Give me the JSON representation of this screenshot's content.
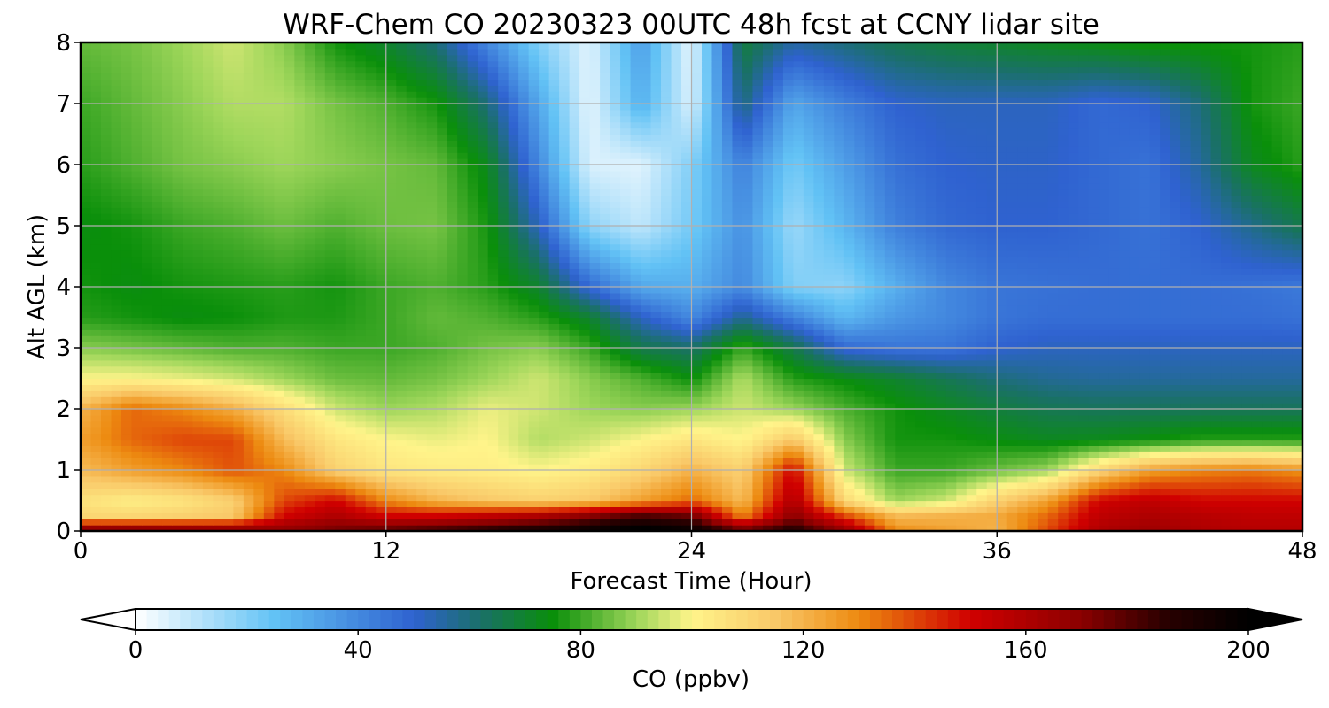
{
  "chart_data": {
    "type": "heatmap",
    "title": "WRF-Chem CO  20230323 00UTC 48h fcst at CCNY lidar site",
    "xlabel": "Forecast Time (Hour)",
    "ylabel": "Alt AGL (km)",
    "xlim": [
      0,
      48
    ],
    "ylim": [
      0,
      8
    ],
    "xticks": [
      0,
      12,
      24,
      36,
      48
    ],
    "yticks": [
      0,
      1,
      2,
      3,
      4,
      5,
      6,
      7,
      8
    ],
    "grid": true,
    "x_hours": [
      0,
      2,
      4,
      6,
      8,
      10,
      12,
      14,
      16,
      18,
      20,
      22,
      24,
      26,
      28,
      30,
      32,
      34,
      36,
      38,
      40,
      42,
      44,
      46,
      48
    ],
    "y_km": [
      0,
      0.25,
      0.5,
      1,
      1.5,
      2,
      2.5,
      3,
      3.5,
      4,
      5,
      6,
      7,
      8
    ],
    "values_ppbv": [
      [
        180,
        180,
        178,
        176,
        170,
        175,
        180,
        185,
        190,
        195,
        200,
        205,
        200,
        180,
        190,
        170,
        130,
        125,
        120,
        140,
        160,
        165,
        160,
        158,
        158
      ],
      [
        110,
        110,
        112,
        115,
        150,
        160,
        150,
        150,
        155,
        160,
        170,
        180,
        175,
        130,
        170,
        140,
        118,
        120,
        122,
        135,
        155,
        160,
        157,
        155,
        155
      ],
      [
        106,
        102,
        105,
        112,
        140,
        150,
        130,
        120,
        115,
        112,
        115,
        125,
        135,
        118,
        160,
        110,
        90,
        95,
        112,
        125,
        150,
        155,
        150,
        150,
        150
      ],
      [
        118,
        125,
        130,
        138,
        130,
        112,
        105,
        103,
        102,
        100,
        103,
        110,
        120,
        112,
        150,
        95,
        80,
        80,
        85,
        90,
        110,
        125,
        130,
        132,
        128
      ],
      [
        125,
        135,
        140,
        140,
        118,
        105,
        100,
        98,
        100,
        92,
        95,
        100,
        105,
        100,
        115,
        88,
        76,
        76,
        74,
        72,
        73,
        75,
        78,
        78,
        78
      ],
      [
        120,
        135,
        130,
        122,
        108,
        95,
        90,
        92,
        98,
        95,
        90,
        88,
        90,
        95,
        90,
        82,
        76,
        72,
        68,
        65,
        64,
        64,
        64,
        64,
        64
      ],
      [
        100,
        100,
        98,
        95,
        90,
        85,
        84,
        86,
        90,
        95,
        88,
        82,
        75,
        92,
        78,
        74,
        70,
        65,
        60,
        57,
        56,
        56,
        56,
        56,
        56
      ],
      [
        88,
        86,
        84,
        82,
        82,
        80,
        80,
        82,
        86,
        88,
        80,
        66,
        62,
        80,
        66,
        48,
        45,
        45,
        50,
        52,
        52,
        52,
        52,
        52,
        52
      ],
      [
        78,
        76,
        74,
        75,
        77,
        77,
        80,
        84,
        82,
        78,
        70,
        52,
        40,
        58,
        42,
        28,
        36,
        40,
        45,
        47,
        47,
        47,
        47,
        47,
        46
      ],
      [
        76,
        74,
        76,
        77,
        78,
        76,
        80,
        82,
        78,
        70,
        48,
        32,
        30,
        40,
        20,
        18,
        30,
        40,
        45,
        46,
        47,
        47,
        47,
        46,
        44
      ],
      [
        74,
        76,
        80,
        82,
        85,
        82,
        85,
        86,
        76,
        52,
        18,
        10,
        22,
        38,
        16,
        28,
        42,
        48,
        50,
        50,
        48,
        46,
        50,
        58,
        66
      ],
      [
        78,
        82,
        86,
        88,
        90,
        88,
        86,
        84,
        72,
        40,
        6,
        5,
        20,
        42,
        22,
        34,
        46,
        50,
        51,
        51,
        48,
        46,
        56,
        72,
        78
      ],
      [
        80,
        84,
        88,
        92,
        92,
        86,
        82,
        76,
        60,
        32,
        4,
        30,
        6,
        60,
        32,
        42,
        50,
        52,
        52,
        52,
        48,
        50,
        60,
        76,
        80
      ],
      [
        84,
        86,
        90,
        95,
        88,
        76,
        70,
        60,
        40,
        20,
        5,
        35,
        4,
        68,
        55,
        60,
        65,
        68,
        70,
        72,
        74,
        76,
        76,
        76,
        78
      ]
    ],
    "colorbar": {
      "label": "CO  (ppbv)",
      "vmin": 0,
      "vmax": 200,
      "ticks": [
        0,
        40,
        80,
        120,
        160,
        200
      ],
      "extend": "both",
      "colormap_stops": [
        {
          "value": 0,
          "color": "#ffffff"
        },
        {
          "value": 25,
          "color": "#62c2f5"
        },
        {
          "value": 50,
          "color": "#2f62d0"
        },
        {
          "value": 62,
          "color": "#1a7068"
        },
        {
          "value": 75,
          "color": "#0a8f0a"
        },
        {
          "value": 90,
          "color": "#9ed65a"
        },
        {
          "value": 100,
          "color": "#fff48a"
        },
        {
          "value": 115,
          "color": "#f9c868"
        },
        {
          "value": 130,
          "color": "#ed8a10"
        },
        {
          "value": 150,
          "color": "#d00000"
        },
        {
          "value": 170,
          "color": "#8a0000"
        },
        {
          "value": 185,
          "color": "#2a0000"
        },
        {
          "value": 200,
          "color": "#000000"
        }
      ]
    }
  }
}
